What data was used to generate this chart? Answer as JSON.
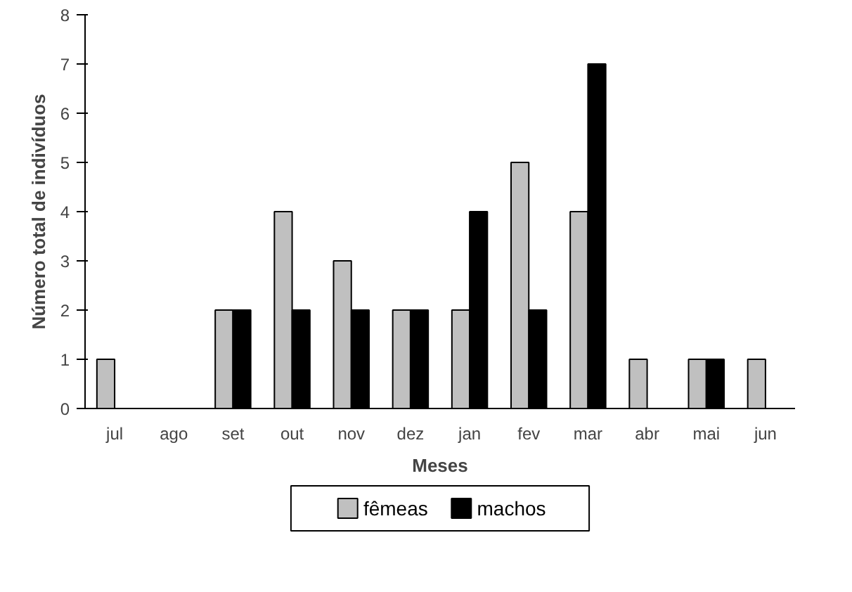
{
  "chart_data": {
    "type": "bar",
    "xlabel": "Meses",
    "ylabel": "Número total de indivíduos",
    "categories": [
      "jul",
      "ago",
      "set",
      "out",
      "nov",
      "dez",
      "jan",
      "fev",
      "mar",
      "abr",
      "mai",
      "jun"
    ],
    "series": [
      {
        "name": "fêmeas",
        "color": "#c0c0c0",
        "values": [
          1,
          null,
          2,
          4,
          3,
          2,
          2,
          5,
          4,
          1,
          1,
          1
        ]
      },
      {
        "name": "machos",
        "color": "#000000",
        "values": [
          null,
          null,
          2,
          2,
          2,
          2,
          4,
          2,
          7,
          null,
          1,
          null
        ]
      }
    ],
    "ylim": [
      0,
      8
    ],
    "yticks": [
      0,
      1,
      2,
      3,
      4,
      5,
      6,
      7,
      8
    ],
    "grid": false,
    "legend": "bottom"
  }
}
